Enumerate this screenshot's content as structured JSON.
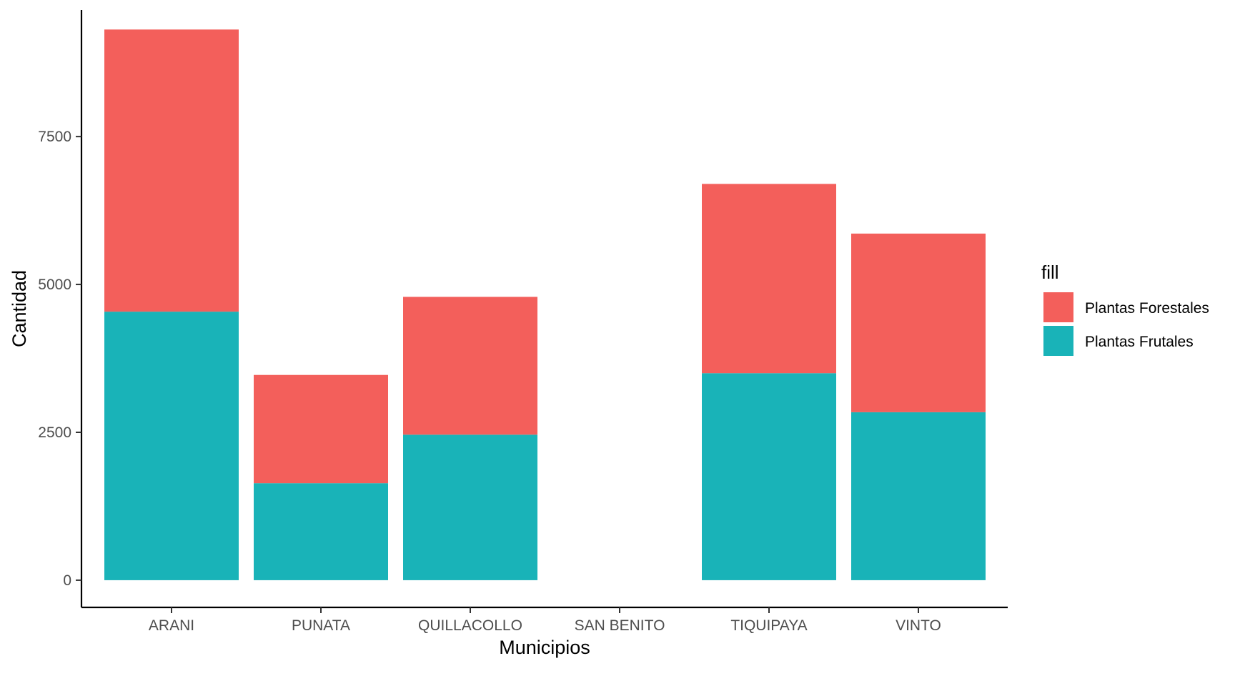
{
  "chart_data": {
    "type": "bar",
    "stacked": true,
    "title": "",
    "xlabel": "Municipios",
    "ylabel": "Cantidad",
    "categories": [
      "ARANI",
      "PUNATA",
      "QUILLACOLLO",
      "SAN BENITO",
      "TIQUIPAYA",
      "VINTO"
    ],
    "ylim": [
      -460,
      9640
    ],
    "yticks": [
      0,
      2500,
      5000,
      7500
    ],
    "ytick_labels": [
      "0",
      "2500",
      "5000",
      "7500"
    ],
    "grid": false,
    "legend": {
      "title": "fill",
      "position": "right"
    },
    "series": [
      {
        "name": "Plantas Frutales",
        "color": "#19B3B8",
        "values": [
          4540,
          1640,
          2460,
          0,
          3500,
          2840
        ]
      },
      {
        "name": "Plantas Forestales",
        "color": "#F35F5B",
        "values": [
          4770,
          1830,
          2330,
          0,
          3200,
          3020
        ]
      }
    ],
    "legend_order": [
      "Plantas Forestales",
      "Plantas Frutales"
    ]
  }
}
